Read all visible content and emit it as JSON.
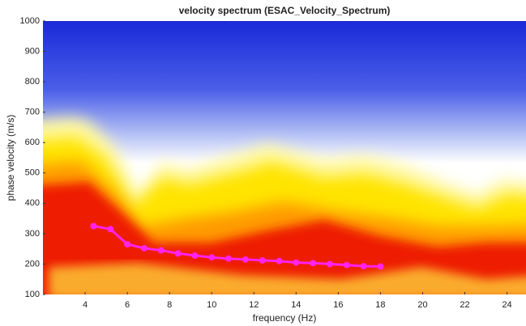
{
  "chart_data": {
    "type": "line",
    "title": "velocity spectrum (ESAC_Velocity_Spectrum)",
    "x_label": "frequency (Hz)",
    "y_label": "phase velocity (m/s)",
    "x": [
      4.4,
      5.2,
      6.0,
      6.8,
      7.6,
      8.4,
      9.2,
      10.0,
      10.8,
      11.6,
      12.4,
      13.2,
      14.0,
      14.8,
      15.6,
      16.4,
      17.2,
      18.0
    ],
    "values": [
      325,
      315,
      265,
      252,
      245,
      235,
      228,
      222,
      218,
      215,
      212,
      210,
      205,
      203,
      200,
      197,
      193,
      192
    ],
    "color": "#ff22ee",
    "xlim": [
      2,
      24.9
    ],
    "ylim": [
      100,
      1000
    ],
    "xticks": [
      4,
      6,
      8,
      10,
      12,
      14,
      16,
      18,
      20,
      22,
      24
    ],
    "yticks": [
      100,
      200,
      300,
      400,
      500,
      600,
      700,
      800,
      900,
      1000
    ]
  }
}
